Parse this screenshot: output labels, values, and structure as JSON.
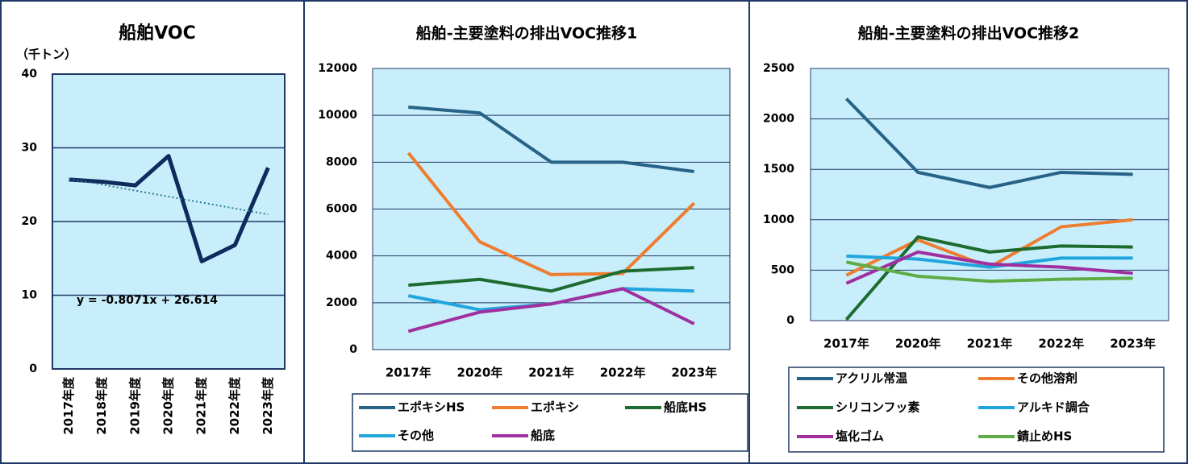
{
  "chart_data": [
    {
      "type": "line",
      "title": "船舶VOC",
      "y_label": "（千トン）",
      "categories": [
        "2017年度",
        "2018年度",
        "2019年度",
        "2020年度",
        "2021年度",
        "2022年度",
        "2023年度"
      ],
      "values": [
        25.7,
        25.4,
        24.9,
        28.9,
        14.6,
        16.8,
        27.3
      ],
      "color": "#0f2a5c",
      "ylim": [
        0,
        40
      ],
      "yticks": [
        0,
        10,
        20,
        30,
        40
      ],
      "grid": true,
      "trendline": {
        "slope": -0.8071,
        "intercept": 26.614,
        "label": "y = -0.8071x + 26.614",
        "color": "#2b7c94"
      }
    },
    {
      "type": "line",
      "title": "船舶-主要塗料の排出VOC推移1",
      "categories": [
        "2017年",
        "2020年",
        "2021年",
        "2022年",
        "2023年"
      ],
      "series": [
        {
          "name": "エポキシHS",
          "color": "#266387",
          "values": [
            10350,
            10100,
            8000,
            8000,
            7600
          ]
        },
        {
          "name": "エポキシ",
          "color": "#ed7d31",
          "values": [
            8400,
            4600,
            3200,
            3250,
            6250
          ]
        },
        {
          "name": "船底HS",
          "color": "#1e6b30",
          "values": [
            2750,
            3000,
            2500,
            3350,
            3500
          ]
        },
        {
          "name": "その他",
          "color": "#20a6dc",
          "values": [
            2300,
            1700,
            1950,
            2600,
            2500
          ]
        },
        {
          "name": "船底",
          "color": "#a0309f",
          "values": [
            780,
            1600,
            1950,
            2600,
            1100
          ]
        }
      ],
      "ylim": [
        0,
        12000
      ],
      "yticks": [
        0,
        2000,
        4000,
        6000,
        8000,
        10000,
        12000
      ],
      "grid": true,
      "legend": "bottom"
    },
    {
      "type": "line",
      "title": "船舶-主要塗料の排出VOC推移2",
      "categories": [
        "2017年",
        "2020年",
        "2021年",
        "2022年",
        "2023年"
      ],
      "series": [
        {
          "name": "アクリル常温",
          "color": "#266387",
          "values": [
            2200,
            1470,
            1320,
            1470,
            1450
          ]
        },
        {
          "name": "その他溶剤",
          "color": "#ed7d31",
          "values": [
            450,
            800,
            530,
            930,
            1000
          ]
        },
        {
          "name": "シリコンフッ素",
          "color": "#1e6b30",
          "values": [
            10,
            830,
            680,
            740,
            730
          ]
        },
        {
          "name": "アルキド調合",
          "color": "#20a6dc",
          "values": [
            640,
            610,
            530,
            620,
            620
          ]
        },
        {
          "name": "塩化ゴム",
          "color": "#a0309f",
          "values": [
            370,
            680,
            560,
            530,
            470
          ]
        },
        {
          "name": "錆止めHS",
          "color": "#5fac47",
          "values": [
            580,
            440,
            390,
            410,
            420
          ]
        }
      ],
      "ylim": [
        0,
        2500
      ],
      "yticks": [
        0,
        500,
        1000,
        1500,
        2000,
        2500
      ],
      "grid": true,
      "legend": "bottom"
    }
  ]
}
